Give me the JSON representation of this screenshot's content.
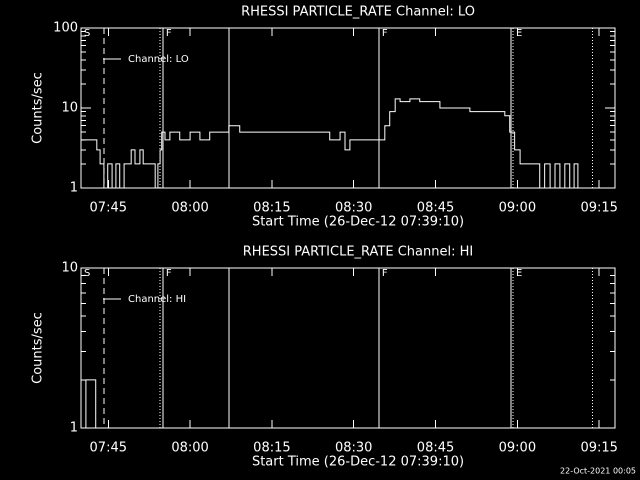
{
  "chart_data": [
    {
      "type": "line",
      "title": "RHESSI PARTICLE_RATE Channel: LO",
      "xlabel": "Start Time (26-Dec-12 07:39:10)",
      "ylabel": "Counts/sec",
      "log_y": true,
      "step": true,
      "legend": "upper left",
      "xlim": [
        460.0,
        557.9
      ],
      "ylim": [
        1,
        100
      ],
      "yticks": [
        1,
        10,
        100
      ],
      "xticks": [
        {
          "value": 465,
          "label": "07:45"
        },
        {
          "value": 480,
          "label": "08:00"
        },
        {
          "value": 495,
          "label": "08:15"
        },
        {
          "value": 510,
          "label": "08:30"
        },
        {
          "value": 525,
          "label": "08:45"
        },
        {
          "value": 540,
          "label": "09:00"
        },
        {
          "value": 555,
          "label": "09:15"
        }
      ],
      "vlines": [
        {
          "x": 460.0,
          "style": "none",
          "label": "S"
        },
        {
          "x": 464.2,
          "style": "dashed"
        },
        {
          "x": 474.5,
          "style": "dotted"
        },
        {
          "x": 475.0,
          "style": "solid",
          "label": "F"
        },
        {
          "x": 487.1,
          "style": "solid"
        },
        {
          "x": 514.6,
          "style": "solid",
          "label": "F"
        },
        {
          "x": 538.8,
          "style": "solid"
        },
        {
          "x": 539.2,
          "style": "dotted",
          "label": "E"
        },
        {
          "x": 553.8,
          "style": "dotted"
        }
      ],
      "x": [
        460.0,
        462.9,
        463.5,
        464.2,
        464.9,
        465.7,
        466.4,
        467.1,
        467.9,
        468.6,
        469.2,
        469.9,
        470.8,
        471.4,
        472.6,
        473.6,
        474.1,
        474.5,
        474.8,
        475.4,
        476.3,
        478.1,
        480.0,
        481.8,
        483.6,
        485.5,
        487.1,
        489.1,
        492.8,
        496.5,
        500.1,
        503.8,
        505.6,
        507.5,
        508.4,
        509.3,
        511.1,
        514.6,
        515.7,
        516.6,
        517.6,
        518.5,
        520.3,
        522.1,
        524.0,
        525.8,
        527.6,
        529.5,
        531.3,
        533.1,
        535.0,
        536.8,
        537.7,
        538.6,
        539.5,
        540.5,
        541.4,
        542.3,
        544.1,
        545.0,
        546.0,
        546.9,
        547.8,
        548.7,
        549.6,
        550.4,
        551.1
      ],
      "series": [
        {
          "name": "Channel: LO",
          "color": "#ffffff",
          "values": [
            4,
            3,
            2,
            1,
            2,
            1,
            2,
            1,
            2,
            2,
            3,
            2,
            3,
            2,
            2,
            1,
            2,
            3,
            5,
            4,
            5,
            4,
            5,
            4,
            5,
            5,
            6,
            5,
            5,
            5,
            5,
            5,
            4,
            5,
            3,
            4,
            4,
            4,
            6,
            9,
            13,
            12,
            13,
            12,
            12,
            10,
            10,
            10,
            9,
            9,
            9,
            9,
            8,
            5,
            3,
            2,
            2,
            2,
            1,
            2,
            1,
            2,
            1,
            2,
            1,
            2,
            1
          ]
        }
      ]
    },
    {
      "type": "line",
      "title": "RHESSI PARTICLE_RATE Channel: HI",
      "xlabel": "Start Time (26-Dec-12 07:39:10)",
      "ylabel": "Counts/sec",
      "log_y": true,
      "step": true,
      "legend": "upper left",
      "xlim": [
        460.0,
        557.9
      ],
      "ylim": [
        1,
        10
      ],
      "yticks": [
        1,
        10
      ],
      "xticks": [
        {
          "value": 465,
          "label": "07:45"
        },
        {
          "value": 480,
          "label": "08:00"
        },
        {
          "value": 495,
          "label": "08:15"
        },
        {
          "value": 510,
          "label": "08:30"
        },
        {
          "value": 525,
          "label": "08:45"
        },
        {
          "value": 540,
          "label": "09:00"
        },
        {
          "value": 555,
          "label": "09:15"
        }
      ],
      "vlines": [
        {
          "x": 460.0,
          "style": "none",
          "label": "S"
        },
        {
          "x": 464.2,
          "style": "dashed"
        },
        {
          "x": 474.5,
          "style": "dotted"
        },
        {
          "x": 475.0,
          "style": "solid",
          "label": "F"
        },
        {
          "x": 487.1,
          "style": "solid"
        },
        {
          "x": 514.6,
          "style": "solid",
          "label": "F"
        },
        {
          "x": 538.8,
          "style": "solid"
        },
        {
          "x": 539.2,
          "style": "dotted",
          "label": "E"
        },
        {
          "x": 553.8,
          "style": "dotted"
        }
      ],
      "x": [
        460.0,
        460.9,
        462.7,
        463.5
      ],
      "series": [
        {
          "name": "Channel: HI",
          "color": "#ffffff",
          "values": [
            1,
            2,
            1,
            1
          ]
        }
      ]
    }
  ],
  "footer": "22-Oct-2021 00:05"
}
